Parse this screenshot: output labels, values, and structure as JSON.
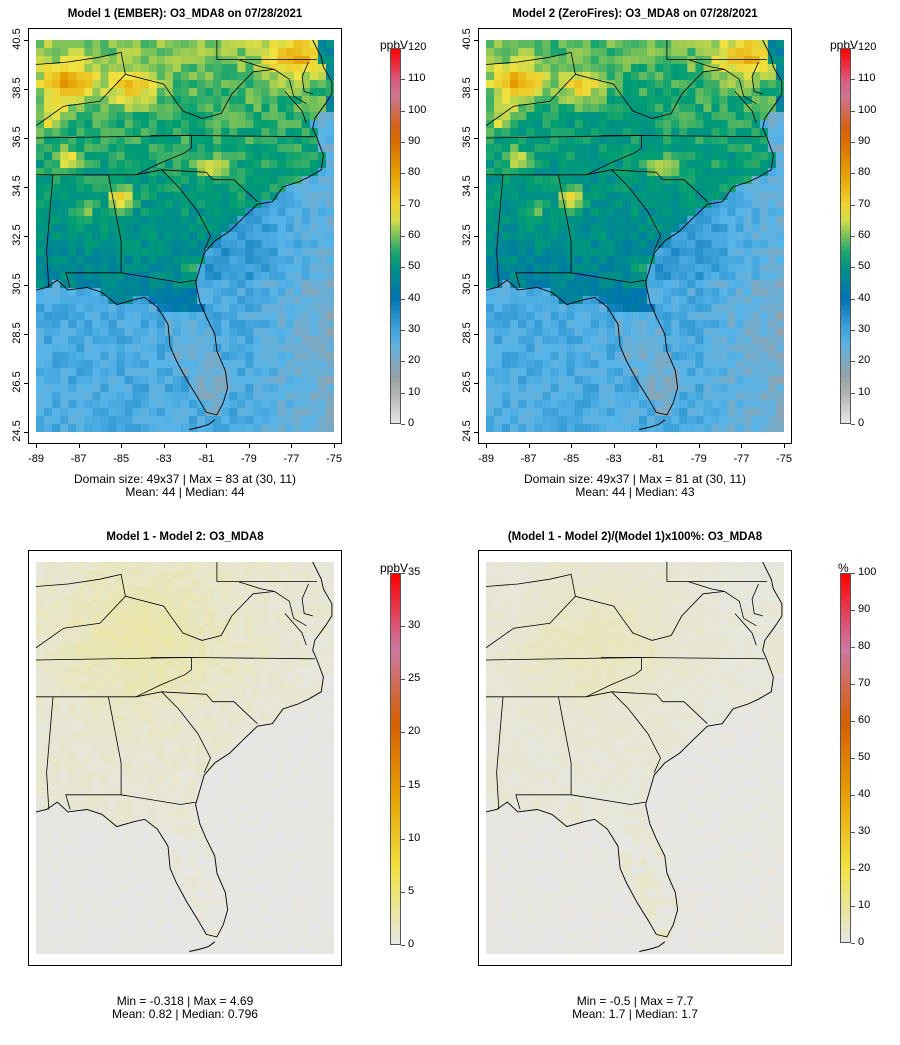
{
  "panels": [
    {
      "id": "p1",
      "title": "Model 1 (EMBER): O3_MDA8 on 07/28/2021",
      "stat_line1": "Domain size: 49x37 | Max = 83 at (30, 11)",
      "stat_line2": "Mean: 44 |  Median: 44",
      "unit": "ppbV",
      "colorbar_ticks": [
        "0",
        "10",
        "20",
        "30",
        "40",
        "50",
        "60",
        "70",
        "80",
        "90",
        "100",
        "110",
        "120"
      ],
      "colorbar_max": 120,
      "scale": "concentration",
      "field": "m1",
      "show_axes": true
    },
    {
      "id": "p2",
      "title": "Model 2 (ZeroFires): O3_MDA8 on 07/28/2021",
      "stat_line1": "Domain size: 49x37 | Max = 81 at (30, 11)",
      "stat_line2": "Mean: 44 |  Median: 43",
      "unit": "ppbV",
      "colorbar_ticks": [
        "0",
        "10",
        "20",
        "30",
        "40",
        "50",
        "60",
        "70",
        "80",
        "90",
        "100",
        "110",
        "120"
      ],
      "colorbar_max": 120,
      "scale": "concentration",
      "field": "m2",
      "show_axes": true
    },
    {
      "id": "p3",
      "title": "Model 1 - Model 2: O3_MDA8",
      "stat_line1": "Min = -0.318 | Max = 4.69",
      "stat_line2": "Mean: 0.82 |  Median: 0.796",
      "unit": "ppbV",
      "colorbar_ticks": [
        "0",
        "5",
        "10",
        "15",
        "20",
        "25",
        "30",
        "35"
      ],
      "colorbar_max": 35,
      "scale": "difference",
      "field": "diff",
      "show_axes": false
    },
    {
      "id": "p4",
      "title": "(Model 1 - Model 2)/(Model 1)x100%: O3_MDA8",
      "stat_line1": "Min = -0.5 | Max = 7.7",
      "stat_line2": "Mean: 1.7 |  Median: 1.7",
      "unit": "%",
      "colorbar_ticks": [
        "0",
        "10",
        "20",
        "30",
        "40",
        "50",
        "60",
        "70",
        "80",
        "90",
        "100"
      ],
      "colorbar_max": 100,
      "scale": "difference",
      "field": "pct",
      "show_axes": false
    }
  ],
  "axes": {
    "x_ticks": [
      "-89",
      "-87",
      "-85",
      "-83",
      "-81",
      "-79",
      "-77",
      "-75"
    ],
    "y_ticks": [
      "24.5",
      "26.5",
      "28.5",
      "30.5",
      "32.5",
      "34.5",
      "36.5",
      "38.5",
      "40.5"
    ]
  },
  "colors": {
    "concentration_scale": [
      "#e6e6e6",
      "#9e9e9e",
      "#56b4e9",
      "#0072b2",
      "#009e73",
      "#f0e442",
      "#e69f00",
      "#d55e00",
      "#cc79a7",
      "#ff0000"
    ],
    "difference_scale": [
      "#e6e6e6",
      "#f0e442",
      "#e69f00",
      "#d55e00",
      "#cc79a7",
      "#ff0000"
    ]
  }
}
